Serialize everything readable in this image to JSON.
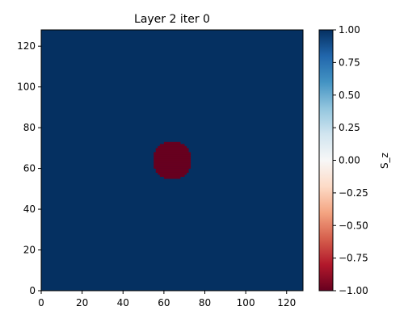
{
  "chart_data": {
    "type": "heatmap",
    "title": "Layer 2 iter 0",
    "xlabel": "",
    "ylabel": "",
    "xlim": [
      0,
      128
    ],
    "ylim": [
      0,
      128
    ],
    "x_ticks": [
      0,
      20,
      40,
      60,
      80,
      100,
      120
    ],
    "y_ticks": [
      0,
      20,
      40,
      60,
      80,
      100,
      120
    ],
    "grid": false,
    "background_value": 1.0,
    "regions": [
      {
        "shape": "disk",
        "center": [
          64,
          64
        ],
        "radius": 9.5,
        "value": -1.0
      }
    ],
    "colorbar": {
      "label": "S_z",
      "colormap": "RdBu",
      "vmin": -1.0,
      "vmax": 1.0,
      "ticks": [
        1.0,
        0.75,
        0.5,
        0.25,
        0.0,
        -0.25,
        -0.5,
        -0.75,
        -1.0
      ],
      "tick_labels": [
        "1.00",
        "0.75",
        "0.50",
        "0.25",
        "0.00",
        "−0.25",
        "−0.50",
        "−0.75",
        "−1.00"
      ],
      "colors": [
        "#67001f",
        "#b2182b",
        "#d6604d",
        "#f4a582",
        "#fddbc7",
        "#f7f7f7",
        "#d1e5f0",
        "#92c5de",
        "#4393c3",
        "#2166ac",
        "#053061"
      ]
    }
  }
}
